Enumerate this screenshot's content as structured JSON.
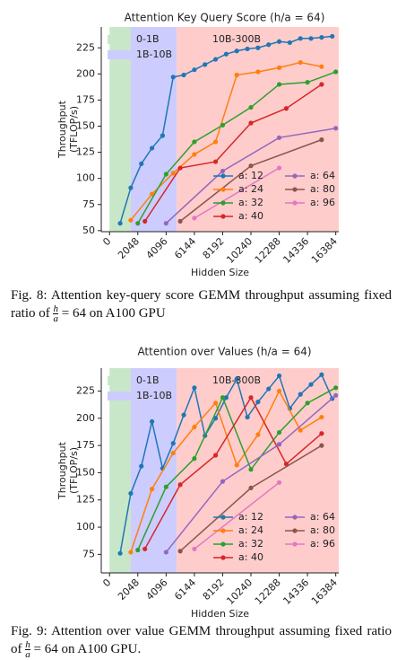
{
  "chart_data": [
    {
      "type": "line",
      "title": "Attention Key Query Score (h/a = 64)",
      "xlabel": "Hidden Size",
      "ylabel": [
        "Throughput",
        "(TFLOP/s)"
      ],
      "xlim": [
        -600,
        16600
      ],
      "xticks": [
        0,
        2048,
        4096,
        6144,
        8192,
        10240,
        12288,
        14336,
        16384
      ],
      "ylim": [
        49,
        245
      ],
      "yticks": [
        50,
        75,
        100,
        125,
        150,
        175,
        200,
        225
      ],
      "regions": [
        {
          "name": "0-1B",
          "color": "#c8e6c8",
          "x": [
            0,
            1536
          ]
        },
        {
          "name": "1B-10B",
          "color": "#ccccff",
          "x": [
            1536,
            4864
          ]
        },
        {
          "name": "10B-300B",
          "color": "#ffcccc",
          "x": [
            4864,
            16600
          ]
        }
      ],
      "series": [
        {
          "name": "a: 12",
          "color": "#1f77b4",
          "x": [
            768,
            1536,
            2304,
            3072,
            3840,
            4608,
            5376,
            6144,
            6912,
            7680,
            8448,
            9216,
            9984,
            10752,
            11520,
            12288,
            13056,
            13824,
            14592,
            15360,
            16128
          ],
          "values": [
            57,
            91,
            114,
            129,
            141,
            197,
            199,
            204,
            209,
            214,
            219,
            222,
            224,
            225,
            228,
            231,
            230,
            234,
            234,
            235,
            236
          ]
        },
        {
          "name": "a: 24",
          "color": "#ff7f0e",
          "x": [
            1536,
            3072,
            4608,
            6144,
            7680,
            9216,
            10752,
            12288,
            13824,
            15360
          ],
          "values": [
            60,
            85,
            105,
            123,
            135,
            199,
            202,
            206,
            211,
            207
          ]
        },
        {
          "name": "a: 32",
          "color": "#2ca02c",
          "x": [
            2048,
            4096,
            6144,
            8192,
            10240,
            12288,
            14336,
            16384
          ],
          "values": [
            57,
            104,
            135,
            151,
            168,
            190,
            192,
            202
          ]
        },
        {
          "name": "a: 40",
          "color": "#d62728",
          "x": [
            2560,
            5120,
            7680,
            10240,
            12800,
            15360
          ],
          "values": [
            59,
            110,
            116,
            153,
            167,
            190
          ]
        },
        {
          "name": "a: 64",
          "color": "#9467bd",
          "x": [
            4096,
            8192,
            12288,
            16384
          ],
          "values": [
            57,
            107,
            139,
            148
          ]
        },
        {
          "name": "a: 80",
          "color": "#8c564b",
          "x": [
            5120,
            10240,
            15360
          ],
          "values": [
            59,
            112,
            137
          ]
        },
        {
          "name": "a: 96",
          "color": "#e377c2",
          "x": [
            6144,
            12288
          ],
          "values": [
            62,
            110
          ]
        }
      ]
    },
    {
      "type": "line",
      "title": "Attention over Values (h/a = 64)",
      "xlabel": "Hidden Size",
      "ylabel": [
        "Throughput",
        "(TFLOP/s)"
      ],
      "xlim": [
        -600,
        16600
      ],
      "xticks": [
        0,
        2048,
        4096,
        6144,
        8192,
        10240,
        12288,
        14336,
        16384
      ],
      "ylim": [
        58,
        246
      ],
      "yticks": [
        75,
        100,
        125,
        150,
        175,
        200,
        225
      ],
      "regions": [
        {
          "name": "0-1B",
          "color": "#c8e6c8",
          "x": [
            0,
            1536
          ]
        },
        {
          "name": "1B-10B",
          "color": "#ccccff",
          "x": [
            1536,
            4864
          ]
        },
        {
          "name": "10B-300B",
          "color": "#ffcccc",
          "x": [
            4864,
            16600
          ]
        }
      ],
      "series": [
        {
          "name": "a: 12",
          "color": "#1f77b4",
          "x": [
            768,
            1536,
            2304,
            3072,
            3840,
            4608,
            5376,
            6144,
            6912,
            7680,
            8448,
            9216,
            9984,
            10752,
            11520,
            12288,
            13056,
            13824,
            14592,
            15360,
            16128
          ],
          "values": [
            76,
            131,
            156,
            197,
            154,
            177,
            203,
            228,
            184,
            200,
            219,
            236,
            201,
            215,
            227,
            239,
            209,
            222,
            231,
            240,
            218
          ]
        },
        {
          "name": "a: 24",
          "color": "#ff7f0e",
          "x": [
            1536,
            3072,
            4608,
            6144,
            7680,
            9216,
            10752,
            12288,
            13824,
            15360
          ],
          "values": [
            77,
            135,
            168,
            192,
            214,
            157,
            185,
            225,
            189,
            201
          ]
        },
        {
          "name": "a: 32",
          "color": "#2ca02c",
          "x": [
            2048,
            4096,
            6144,
            8192,
            10240,
            12288,
            14336,
            16384
          ],
          "values": [
            79,
            137,
            163,
            219,
            153,
            187,
            214,
            228
          ]
        },
        {
          "name": "a: 40",
          "color": "#d62728",
          "x": [
            2560,
            5120,
            7680,
            10240,
            12800,
            15360
          ],
          "values": [
            80,
            139,
            166,
            219,
            158,
            186
          ]
        },
        {
          "name": "a: 64",
          "color": "#9467bd",
          "x": [
            4096,
            8192,
            12288,
            16384
          ],
          "values": [
            77,
            142,
            176,
            221
          ]
        },
        {
          "name": "a: 80",
          "color": "#8c564b",
          "x": [
            5120,
            10240,
            15360
          ],
          "values": [
            78,
            136,
            175
          ]
        },
        {
          "name": "a: 96",
          "color": "#e377c2",
          "x": [
            6144,
            12288
          ],
          "values": [
            80,
            141
          ]
        }
      ]
    }
  ],
  "captions": [
    {
      "text": "Fig. 8: Attention key-query score GEMM throughput assuming fixed ratio of",
      "num": "h",
      "den": "a",
      "after": "= 64 on A100 GPU"
    },
    {
      "text": "Fig. 9: Attention over value GEMM throughput assuming fixed ratio of",
      "num": "h",
      "den": "a",
      "after": "= 64 on A100 GPU."
    }
  ]
}
